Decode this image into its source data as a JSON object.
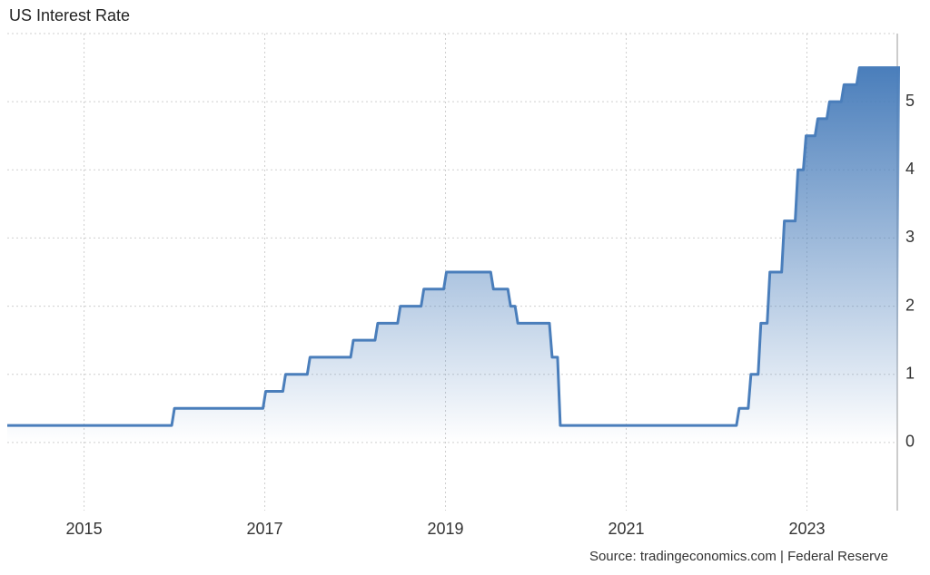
{
  "chart_data": {
    "type": "step-area",
    "title": "US Interest Rate",
    "source": "Source: tradingeconomics.com | Federal Reserve",
    "x": [
      2014.15,
      2015.97,
      2016.98,
      2017.2,
      2017.47,
      2017.95,
      2018.22,
      2018.47,
      2018.73,
      2018.98,
      2019.5,
      2019.69,
      2019.77,
      2020.15,
      2020.24,
      2022.22,
      2022.35,
      2022.46,
      2022.56,
      2022.72,
      2022.87,
      2022.96,
      2023.09,
      2023.22,
      2023.38,
      2023.55,
      2024.0
    ],
    "values": [
      0.25,
      0.5,
      0.75,
      1.0,
      1.25,
      1.5,
      1.75,
      2.0,
      2.25,
      2.5,
      2.25,
      2.0,
      1.75,
      1.25,
      0.25,
      0.5,
      1.0,
      1.75,
      2.5,
      3.25,
      4.0,
      4.5,
      4.75,
      5.0,
      5.25,
      5.5,
      5.5
    ],
    "color": "#4a7ebb",
    "xlim": [
      2014.15,
      2024.0
    ],
    "ylim": [
      -1,
      6
    ],
    "xticks": [
      2015,
      2017,
      2019,
      2021,
      2023
    ],
    "yticks": [
      0,
      1,
      2,
      3,
      4,
      5
    ],
    "grid": true
  }
}
